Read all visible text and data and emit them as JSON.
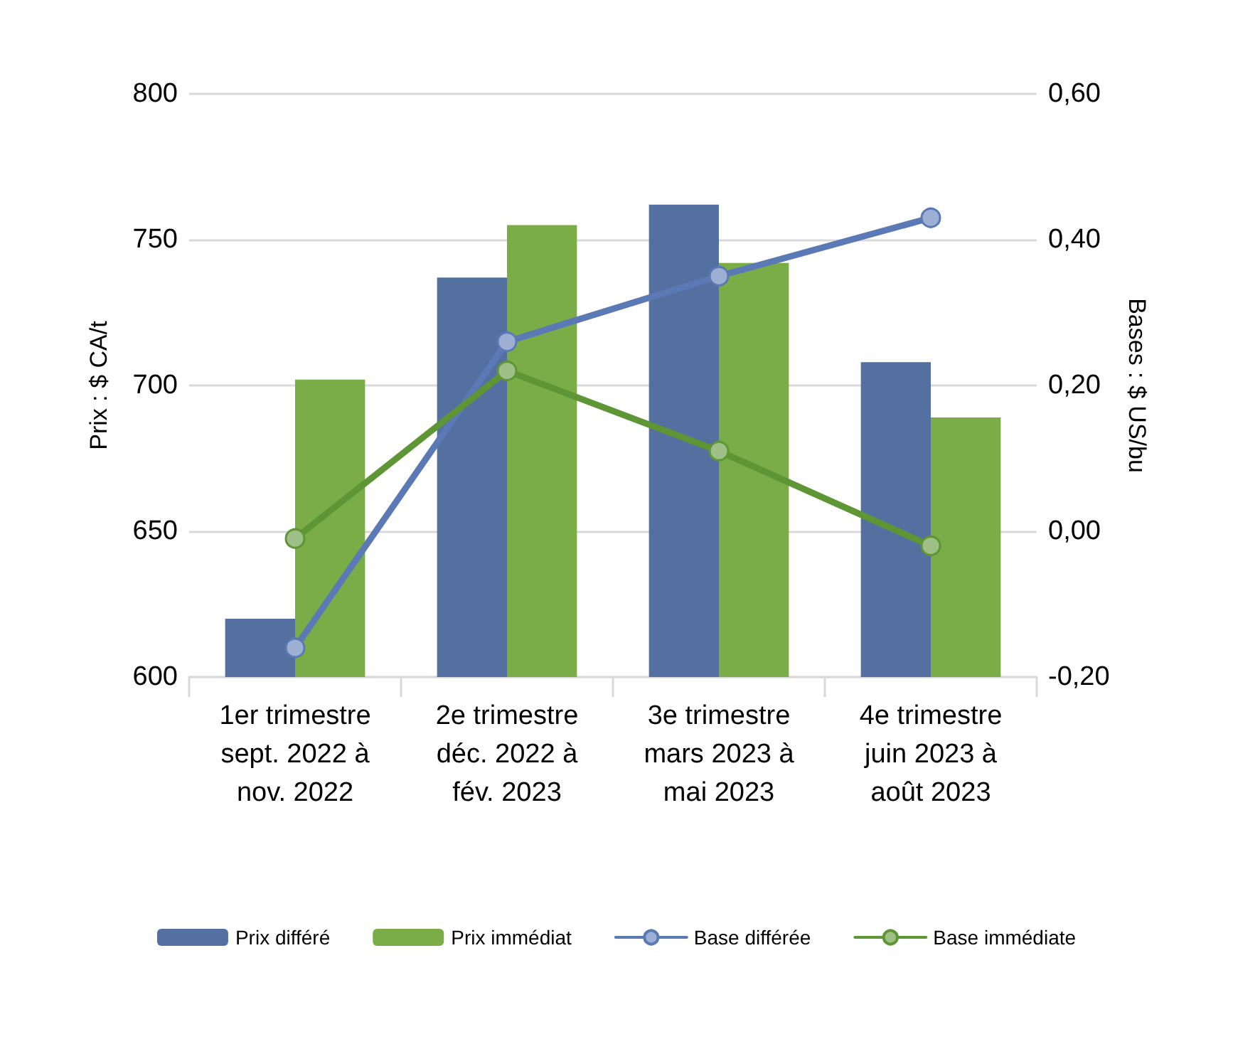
{
  "chart_data": {
    "type": "bar",
    "categories": [
      "1er trimestre\nsept. 2022 à\nnov. 2022",
      "2e trimestre\ndéc. 2022 à\nfév. 2023",
      "3e trimestre\nmars 2023 à\nmai 2023",
      "4e trimestre\njuin 2023 à\naoût 2023"
    ],
    "series": [
      {
        "name": "Prix différé",
        "color": "#5470a0",
        "values": [
          620,
          737,
          762,
          708
        ]
      },
      {
        "name": "Prix immédiat",
        "color": "#7aad47",
        "values": [
          702,
          755,
          742,
          689
        ]
      },
      {
        "name": "Base différée",
        "type": "line",
        "axis": "y2",
        "color": "#5b79b5",
        "values": [
          -0.16,
          0.26,
          0.35,
          0.43
        ]
      },
      {
        "name": "Base immédiate",
        "type": "line",
        "axis": "y2",
        "color": "#5e9535",
        "values": [
          -0.01,
          0.22,
          0.11,
          -0.02
        ]
      }
    ],
    "ylabel": "Prix : $ CA/t",
    "y2label": "Bases : $ US/bu",
    "ylim": [
      600,
      800
    ],
    "yticks": [
      600,
      650,
      700,
      750,
      800
    ],
    "y2lim": [
      -0.2,
      0.6
    ],
    "y2ticks": [
      {
        "value": -0.2,
        "label": "-0,20"
      },
      {
        "value": 0,
        "label": "0,00"
      },
      {
        "value": 0.2,
        "label": "0,20"
      },
      {
        "value": 0.4,
        "label": "0,40"
      },
      {
        "value": 0.6,
        "label": "0,60"
      }
    ],
    "grid": "y",
    "legend": "bottom",
    "marker": "circle",
    "line_style": "solid"
  }
}
